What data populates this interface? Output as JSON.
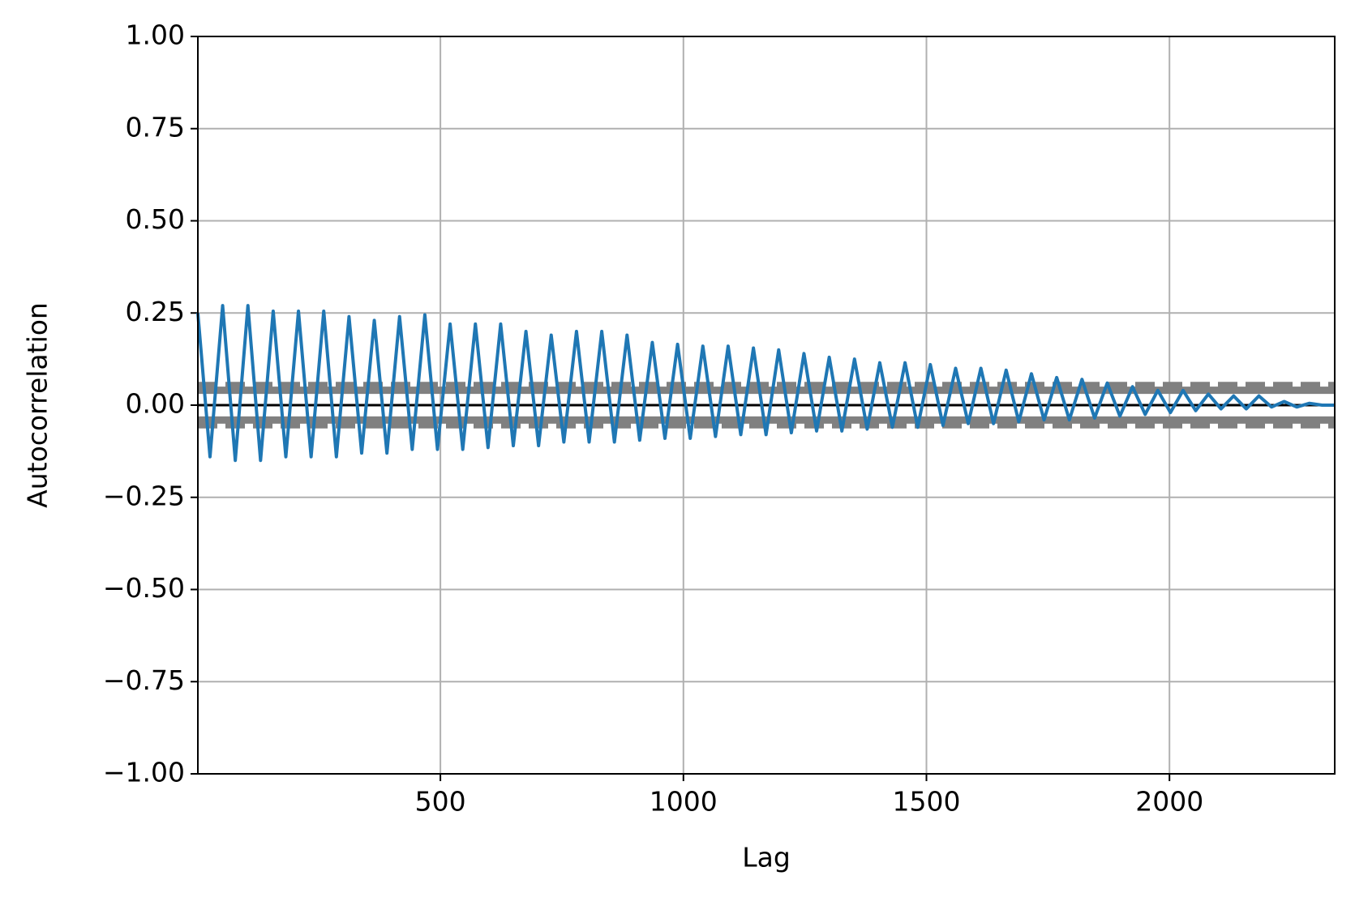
{
  "chart_data": {
    "type": "line",
    "xlabel": "Lag",
    "ylabel": "Autocorrelation",
    "x": [
      1,
      26,
      52,
      78,
      104,
      130,
      156,
      182,
      208,
      234,
      260,
      286,
      312,
      338,
      364,
      390,
      416,
      442,
      468,
      494,
      520,
      546,
      572,
      598,
      624,
      650,
      676,
      702,
      728,
      754,
      780,
      806,
      832,
      858,
      884,
      910,
      936,
      962,
      988,
      1014,
      1040,
      1066,
      1092,
      1118,
      1144,
      1170,
      1196,
      1222,
      1248,
      1274,
      1300,
      1326,
      1352,
      1378,
      1404,
      1430,
      1456,
      1482,
      1508,
      1534,
      1560,
      1586,
      1612,
      1638,
      1664,
      1690,
      1716,
      1742,
      1768,
      1794,
      1820,
      1846,
      1872,
      1898,
      1924,
      1950,
      1976,
      2002,
      2028,
      2054,
      2080,
      2106,
      2132,
      2158,
      2184,
      2210,
      2236,
      2262,
      2288,
      2314,
      2340
    ],
    "values": [
      0.25,
      -0.14,
      0.27,
      -0.15,
      0.27,
      -0.15,
      0.255,
      -0.14,
      0.255,
      -0.14,
      0.255,
      -0.14,
      0.24,
      -0.13,
      0.23,
      -0.13,
      0.24,
      -0.12,
      0.245,
      -0.12,
      0.22,
      -0.12,
      0.22,
      -0.115,
      0.22,
      -0.11,
      0.2,
      -0.11,
      0.19,
      -0.1,
      0.2,
      -0.1,
      0.2,
      -0.1,
      0.19,
      -0.095,
      0.17,
      -0.09,
      0.165,
      -0.09,
      0.16,
      -0.085,
      0.16,
      -0.08,
      0.155,
      -0.08,
      0.15,
      -0.075,
      0.14,
      -0.07,
      0.13,
      -0.07,
      0.125,
      -0.065,
      0.115,
      -0.06,
      0.115,
      -0.06,
      0.11,
      -0.055,
      0.1,
      -0.05,
      0.1,
      -0.05,
      0.095,
      -0.045,
      0.085,
      -0.04,
      0.075,
      -0.04,
      0.07,
      -0.035,
      0.06,
      -0.03,
      0.05,
      -0.025,
      0.04,
      -0.02,
      0.04,
      -0.015,
      0.03,
      -0.01,
      0.025,
      -0.01,
      0.025,
      -0.005,
      0.01,
      -0.005,
      0.005,
      0,
      0
    ],
    "color": "#1f77b4",
    "hlines": [
      {
        "value": 0.0532,
        "color": "#808080",
        "dashed": true
      },
      {
        "value": 0.0405,
        "color": "#808080",
        "dashed": false
      },
      {
        "value": 0,
        "color": "#000000",
        "dashed": false
      },
      {
        "value": -0.0405,
        "color": "#808080",
        "dashed": false
      },
      {
        "value": -0.0532,
        "color": "#808080",
        "dashed": true
      }
    ],
    "xlim": [
      1,
      2340
    ],
    "ylim": [
      -1,
      1
    ],
    "xticks": [
      500,
      1000,
      1500,
      2000
    ],
    "yticks": [
      {
        "value": -1,
        "label": "−1.00"
      },
      {
        "value": -0.75,
        "label": "−0.75"
      },
      {
        "value": -0.5,
        "label": "−0.50"
      },
      {
        "value": -0.25,
        "label": "−0.25"
      },
      {
        "value": 0,
        "label": "0.00"
      },
      {
        "value": 0.25,
        "label": "0.25"
      },
      {
        "value": 0.5,
        "label": "0.50"
      },
      {
        "value": 0.75,
        "label": "0.75"
      },
      {
        "value": 1,
        "label": "1.00"
      }
    ],
    "grid": true
  }
}
